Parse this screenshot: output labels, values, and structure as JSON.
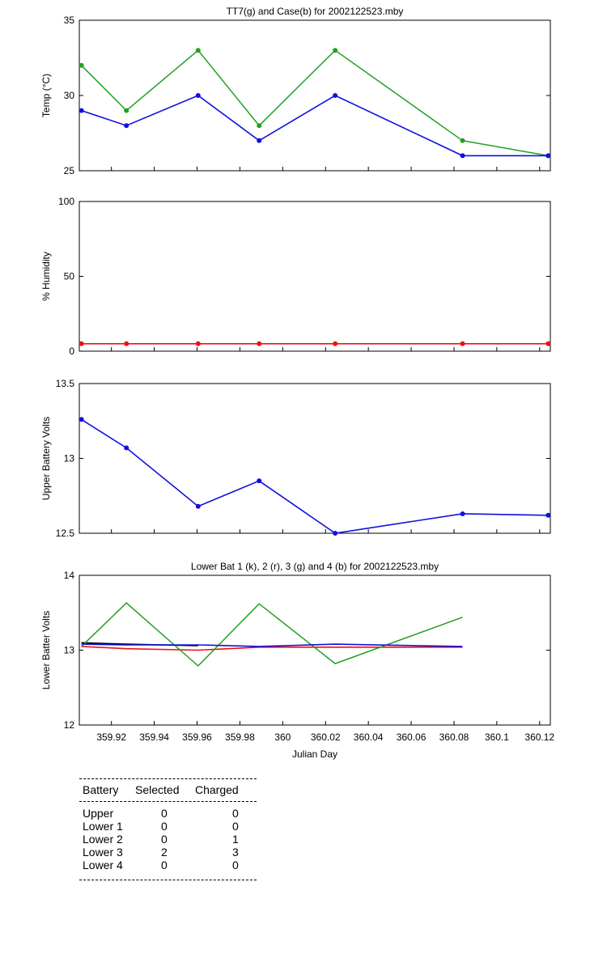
{
  "colors": {
    "green": "#22a022",
    "blue": "#1010dd",
    "red": "#ee1111",
    "black": "#000000"
  },
  "chart_data": [
    {
      "type": "line",
      "title": "TT7(g) and Case(b) for 2002122523.mby",
      "ylabel": "Temp  (°C)",
      "xlabel": "",
      "ylim": [
        25,
        35
      ],
      "yticks": [
        "25",
        "30",
        "35"
      ],
      "xlim": [
        359.905,
        360.125
      ],
      "markers": true,
      "series": [
        {
          "color": "green",
          "x": [
            359.906,
            359.927,
            359.9605,
            359.989,
            360.0245,
            360.084,
            360.124
          ],
          "values": [
            32,
            29,
            33,
            28,
            33,
            27,
            26
          ]
        },
        {
          "color": "blue",
          "x": [
            359.906,
            359.927,
            359.9605,
            359.989,
            360.0245,
            360.084,
            360.124
          ],
          "values": [
            29,
            28,
            30,
            27,
            30,
            26,
            26
          ]
        }
      ]
    },
    {
      "type": "line",
      "title": "",
      "ylabel": "% Humidity",
      "xlabel": "",
      "ylim": [
        0,
        100
      ],
      "yticks": [
        "0",
        "50",
        "100"
      ],
      "xlim": [
        359.905,
        360.125
      ],
      "markers": true,
      "series": [
        {
          "color": "red",
          "x": [
            359.906,
            359.927,
            359.9605,
            359.989,
            360.0245,
            360.084,
            360.124
          ],
          "values": [
            5,
            5,
            5,
            5,
            5,
            5,
            5
          ]
        }
      ]
    },
    {
      "type": "line",
      "title": "",
      "ylabel": "Upper Battery Volts",
      "xlabel": "",
      "ylim": [
        12.5,
        13.5
      ],
      "yticks": [
        "12.5",
        "13",
        "13.5"
      ],
      "xlim": [
        359.905,
        360.125
      ],
      "markers": true,
      "series": [
        {
          "color": "blue",
          "x": [
            359.906,
            359.927,
            359.9605,
            359.989,
            360.0245,
            360.084,
            360.124
          ],
          "values": [
            13.26,
            13.07,
            12.68,
            12.85,
            12.5,
            12.63,
            12.62
          ]
        }
      ]
    },
    {
      "type": "line",
      "title": "Lower Bat 1 (k), 2 (r), 3 (g) and 4 (b) for 2002122523.mby",
      "ylabel": "Lower Batter Volts",
      "xlabel": "Julian Day",
      "ylim": [
        12,
        14
      ],
      "yticks": [
        "12",
        "13",
        "14"
      ],
      "xlim": [
        359.905,
        360.125
      ],
      "xticks": [
        "359.92",
        "359.94",
        "359.96",
        "359.98",
        "360",
        "360.02",
        "360.04",
        "360.06",
        "360.08",
        "360.1",
        "360.12"
      ],
      "markers": false,
      "series": [
        {
          "color": "black",
          "x": [
            359.906,
            359.927,
            359.9605
          ],
          "values": [
            13.1,
            13.08,
            13.06
          ]
        },
        {
          "color": "red",
          "x": [
            359.906,
            359.927,
            359.9605,
            359.989,
            360.0245,
            360.084
          ],
          "values": [
            13.05,
            13.02,
            13.0,
            13.04,
            13.04,
            13.04
          ]
        },
        {
          "color": "green",
          "x": [
            359.906,
            359.927,
            359.9605,
            359.989,
            360.0245,
            360.084
          ],
          "values": [
            13.05,
            13.63,
            12.79,
            13.62,
            12.82,
            13.44
          ]
        },
        {
          "color": "blue",
          "x": [
            359.906,
            359.927,
            359.9605,
            359.989,
            360.0245,
            360.084
          ],
          "values": [
            13.08,
            13.07,
            13.07,
            13.05,
            13.08,
            13.05
          ]
        }
      ]
    }
  ],
  "battery_table": {
    "headers": [
      "Battery",
      "Selected",
      "Charged"
    ],
    "rows": [
      {
        "battery": "Upper",
        "selected": "0",
        "charged": "0"
      },
      {
        "battery": "Lower 1",
        "selected": "0",
        "charged": "0"
      },
      {
        "battery": "Lower 2",
        "selected": "0",
        "charged": "1"
      },
      {
        "battery": "Lower 3",
        "selected": "2",
        "charged": "3"
      },
      {
        "battery": "Lower 4",
        "selected": "0",
        "charged": "0"
      }
    ]
  }
}
